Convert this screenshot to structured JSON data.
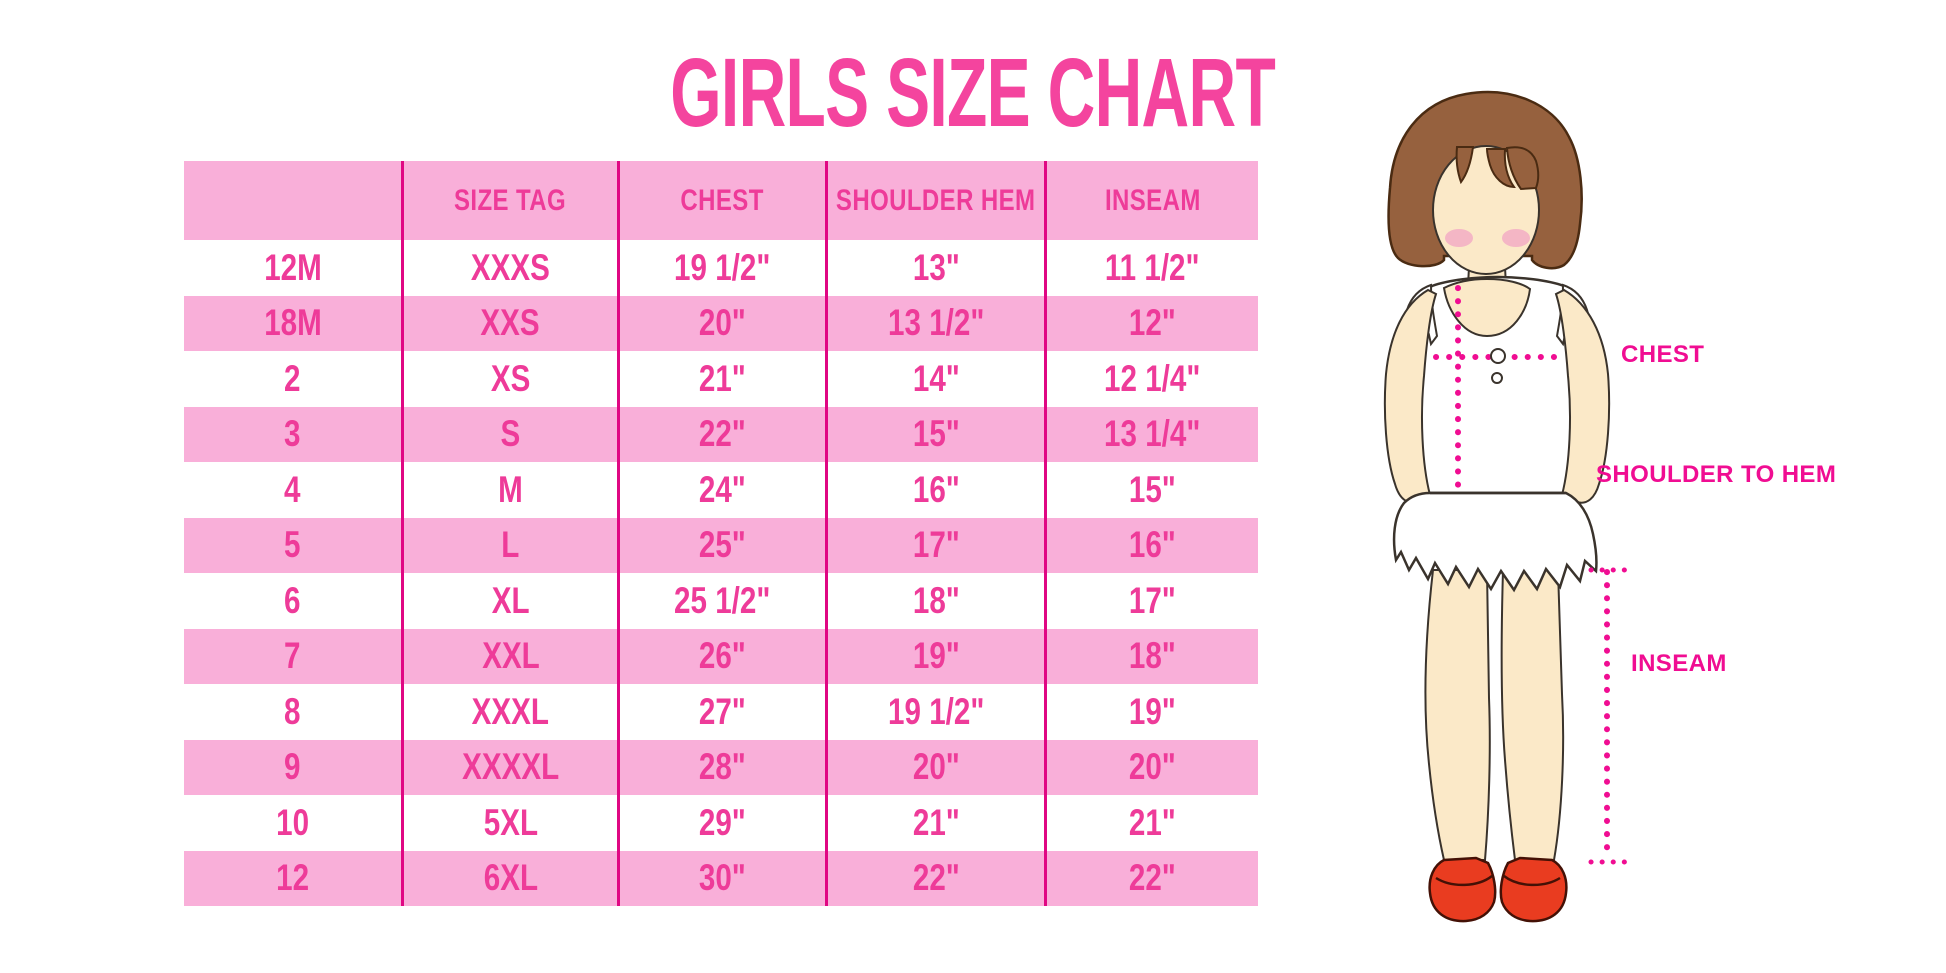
{
  "title": "GIRLS SIZE CHART",
  "table": {
    "columns": [
      "",
      "SIZE TAG",
      "CHEST",
      "SHOULDER HEM",
      "INSEAM"
    ],
    "rows": [
      [
        "12M",
        "XXXS",
        "19 1/2\"",
        "13\"",
        "11 1/2\""
      ],
      [
        "18M",
        "XXS",
        "20\"",
        "13 1/2\"",
        "12\""
      ],
      [
        "2",
        "XS",
        "21\"",
        "14\"",
        "12 1/4\""
      ],
      [
        "3",
        "S",
        "22\"",
        "15\"",
        "13 1/4\""
      ],
      [
        "4",
        "M",
        "24\"",
        "16\"",
        "15\""
      ],
      [
        "5",
        "L",
        "25\"",
        "17\"",
        "16\""
      ],
      [
        "6",
        "XL",
        "25 1/2\"",
        "18\"",
        "17\""
      ],
      [
        "7",
        "XXL",
        "26\"",
        "19\"",
        "18\""
      ],
      [
        "8",
        "XXXL",
        "27\"",
        "19 1/2\"",
        "19\""
      ],
      [
        "9",
        "XXXXL",
        "28\"",
        "20\"",
        "20\""
      ],
      [
        "10",
        "5XL",
        "29\"",
        "21\"",
        "21\""
      ],
      [
        "12",
        "6XL",
        "30\"",
        "22\"",
        "22\""
      ]
    ]
  },
  "chart_data": {
    "type": "table",
    "title": "GIRLS SIZE CHART",
    "columns": [
      "",
      "SIZE TAG",
      "CHEST",
      "SHOULDER HEM",
      "INSEAM"
    ],
    "rows": [
      [
        "12M",
        "XXXS",
        "19 1/2\"",
        "13\"",
        "11 1/2\""
      ],
      [
        "18M",
        "XXS",
        "20\"",
        "13 1/2\"",
        "12\""
      ],
      [
        "2",
        "XS",
        "21\"",
        "14\"",
        "12 1/4\""
      ],
      [
        "3",
        "S",
        "22\"",
        "15\"",
        "13 1/4\""
      ],
      [
        "4",
        "M",
        "24\"",
        "16\"",
        "15\""
      ],
      [
        "5",
        "L",
        "25\"",
        "17\"",
        "16\""
      ],
      [
        "6",
        "XL",
        "25 1/2\"",
        "18\"",
        "17\""
      ],
      [
        "7",
        "XXL",
        "26\"",
        "19\"",
        "18\""
      ],
      [
        "8",
        "XXXL",
        "27\"",
        "19 1/2\"",
        "19\""
      ],
      [
        "9",
        "XXXXL",
        "28\"",
        "20\"",
        "20\""
      ],
      [
        "10",
        "5XL",
        "29\"",
        "21\"",
        "21\""
      ],
      [
        "12",
        "6XL",
        "30\"",
        "22\"",
        "22\""
      ]
    ],
    "layout_hints": {
      "striped_rows": true,
      "stripe_color": "#F9AFD9",
      "column_dividers": true
    }
  },
  "diagram": {
    "labels": {
      "chest": "CHEST",
      "shoulder_to_hem": "SHOULDER TO HEM",
      "inseam": "INSEAM"
    }
  },
  "colors": {
    "row_pink": "#F9AFD9",
    "table_text_magenta": "#EE3B99",
    "divider_line": "#E00783",
    "title_pink": "#F4449E",
    "label_magenta": "#F00D92",
    "dotted_line": "#F00D92",
    "hair_brown": "#96613E",
    "skin": "#FBE9C8",
    "blush": "#F2A9C4",
    "shoe_red": "#E93C20"
  }
}
